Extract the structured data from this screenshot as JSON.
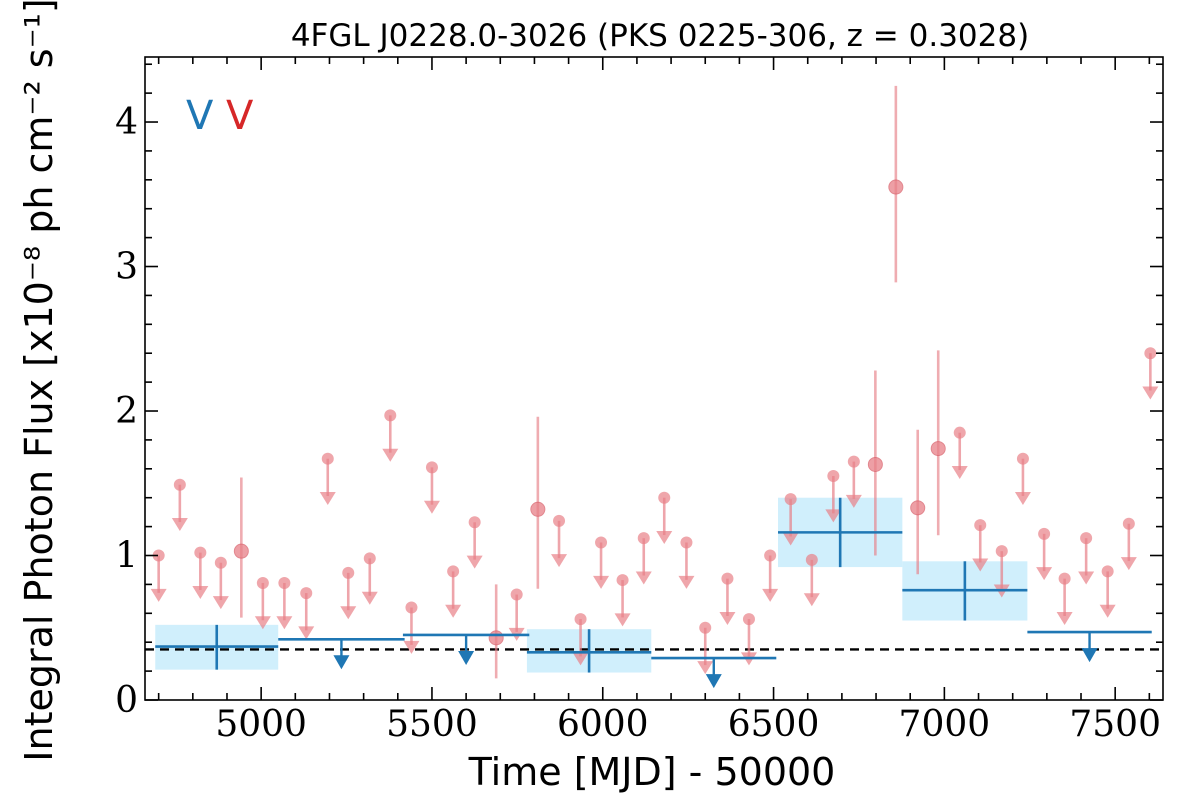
{
  "chart_data": {
    "type": "scatter",
    "title": "4FGL J0228.0-3026 (PKS 0225-306, z = 0.3028)",
    "xlabel": "Time [MJD] - 50000",
    "ylabel": "Integral Photon Flux [x10⁻⁸ ph cm⁻² s⁻¹]",
    "xlim": [
      4660,
      7640
    ],
    "ylim": [
      0,
      4.45
    ],
    "x_ticks": [
      5000,
      5500,
      6000,
      6500,
      7000,
      7500
    ],
    "x_tick_labels": [
      "5000",
      "5500",
      "6000",
      "6500",
      "7000",
      "7500"
    ],
    "y_ticks": [
      0,
      1,
      2,
      3,
      4
    ],
    "y_tick_labels": [
      "0",
      "1",
      "2",
      "3",
      "4"
    ],
    "grid": false,
    "legend": {
      "placement": "top-left",
      "entries": [
        {
          "label": "V",
          "color": "#1f77b4"
        },
        {
          "label": "V",
          "color": "#d62728"
        }
      ]
    },
    "colors": {
      "long_bins": "#1f77b4",
      "long_band": "#cdeefc",
      "short_bins": "#e8a0a3",
      "short_points": "#e88088",
      "reference_line": "#000000"
    },
    "reference_line": {
      "y": 0.35,
      "style": "dashed"
    },
    "long_bins": [
      {
        "x": 4870,
        "xerr": 180,
        "y": 0.37,
        "ylo": 0.21,
        "yhi": 0.52,
        "upper_limit": false
      },
      {
        "x": 5235,
        "xerr": 185,
        "y": 0.42,
        "upper_limit": true
      },
      {
        "x": 5600,
        "xerr": 185,
        "y": 0.45,
        "upper_limit": true
      },
      {
        "x": 5960,
        "xerr": 182,
        "y": 0.33,
        "ylo": 0.19,
        "yhi": 0.49,
        "upper_limit": false
      },
      {
        "x": 6325,
        "xerr": 183,
        "y": 0.29,
        "upper_limit": true
      },
      {
        "x": 6695,
        "xerr": 182,
        "y": 1.16,
        "ylo": 0.92,
        "yhi": 1.4,
        "upper_limit": false
      },
      {
        "x": 7060,
        "xerr": 183,
        "y": 0.76,
        "ylo": 0.55,
        "yhi": 0.96,
        "upper_limit": false
      },
      {
        "x": 7425,
        "xerr": 182,
        "y": 0.47,
        "upper_limit": true
      }
    ],
    "short_bins": [
      {
        "x": 4700,
        "y": 1.0,
        "upper_limit": true
      },
      {
        "x": 4762,
        "y": 1.49,
        "upper_limit": true
      },
      {
        "x": 4822,
        "y": 1.02,
        "upper_limit": true
      },
      {
        "x": 4882,
        "y": 0.95,
        "upper_limit": true
      },
      {
        "x": 4942,
        "y": 1.03,
        "ylo": 0.57,
        "yhi": 1.54,
        "upper_limit": false
      },
      {
        "x": 5005,
        "y": 0.81,
        "upper_limit": true
      },
      {
        "x": 5068,
        "y": 0.81,
        "upper_limit": true
      },
      {
        "x": 5132,
        "y": 0.74,
        "upper_limit": true
      },
      {
        "x": 5195,
        "y": 1.67,
        "upper_limit": true
      },
      {
        "x": 5255,
        "y": 0.88,
        "upper_limit": true
      },
      {
        "x": 5318,
        "y": 0.98,
        "upper_limit": true
      },
      {
        "x": 5378,
        "y": 1.97,
        "upper_limit": true
      },
      {
        "x": 5440,
        "y": 0.64,
        "upper_limit": true
      },
      {
        "x": 5500,
        "y": 1.61,
        "upper_limit": true
      },
      {
        "x": 5562,
        "y": 0.89,
        "upper_limit": true
      },
      {
        "x": 5625,
        "y": 1.23,
        "upper_limit": true
      },
      {
        "x": 5688,
        "y": 0.43,
        "ylo": 0.15,
        "yhi": 0.8,
        "upper_limit": false
      },
      {
        "x": 5748,
        "y": 0.73,
        "upper_limit": true
      },
      {
        "x": 5810,
        "y": 1.32,
        "ylo": 0.77,
        "yhi": 1.96,
        "upper_limit": false
      },
      {
        "x": 5872,
        "y": 1.24,
        "upper_limit": true
      },
      {
        "x": 5935,
        "y": 0.56,
        "upper_limit": true
      },
      {
        "x": 5995,
        "y": 1.09,
        "upper_limit": true
      },
      {
        "x": 6058,
        "y": 0.83,
        "upper_limit": true
      },
      {
        "x": 6120,
        "y": 1.12,
        "upper_limit": true
      },
      {
        "x": 6180,
        "y": 1.4,
        "upper_limit": true
      },
      {
        "x": 6245,
        "y": 1.09,
        "upper_limit": true
      },
      {
        "x": 6300,
        "y": 0.5,
        "upper_limit": true
      },
      {
        "x": 6365,
        "y": 0.84,
        "upper_limit": true
      },
      {
        "x": 6428,
        "y": 0.56,
        "upper_limit": true
      },
      {
        "x": 6490,
        "y": 1.0,
        "upper_limit": true
      },
      {
        "x": 6550,
        "y": 1.39,
        "upper_limit": true
      },
      {
        "x": 6612,
        "y": 0.97,
        "upper_limit": true
      },
      {
        "x": 6675,
        "y": 1.55,
        "upper_limit": true
      },
      {
        "x": 6735,
        "y": 1.65,
        "upper_limit": true
      },
      {
        "x": 6798,
        "y": 1.63,
        "ylo": 1.0,
        "yhi": 2.28,
        "upper_limit": false
      },
      {
        "x": 6858,
        "y": 3.55,
        "ylo": 2.89,
        "yhi": 4.25,
        "upper_limit": false
      },
      {
        "x": 6922,
        "y": 1.33,
        "ylo": 0.87,
        "yhi": 1.87,
        "upper_limit": false
      },
      {
        "x": 6982,
        "y": 1.74,
        "ylo": 1.14,
        "yhi": 2.42,
        "upper_limit": false
      },
      {
        "x": 7045,
        "y": 1.85,
        "upper_limit": true
      },
      {
        "x": 7105,
        "y": 1.21,
        "upper_limit": true
      },
      {
        "x": 7168,
        "y": 1.03,
        "upper_limit": true
      },
      {
        "x": 7230,
        "y": 1.67,
        "upper_limit": true
      },
      {
        "x": 7292,
        "y": 1.15,
        "upper_limit": true
      },
      {
        "x": 7352,
        "y": 0.84,
        "upper_limit": true
      },
      {
        "x": 7415,
        "y": 1.12,
        "upper_limit": true
      },
      {
        "x": 7478,
        "y": 0.89,
        "upper_limit": true
      },
      {
        "x": 7540,
        "y": 1.22,
        "upper_limit": true
      },
      {
        "x": 7603,
        "y": 2.4,
        "upper_limit": true
      }
    ]
  }
}
